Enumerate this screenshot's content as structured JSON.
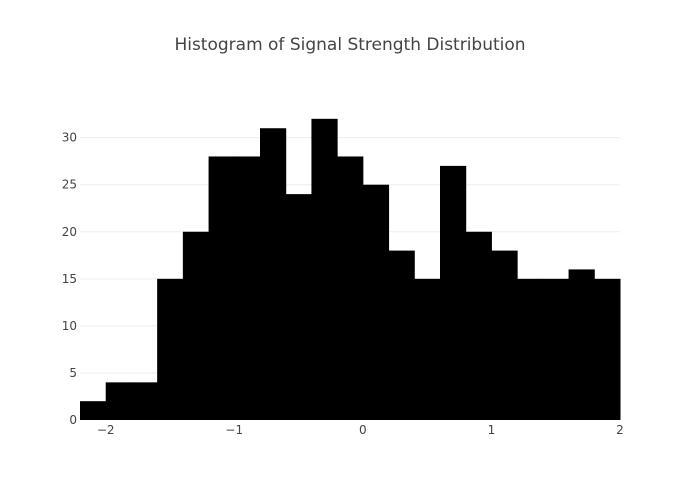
{
  "chart_data": {
    "type": "bar",
    "title": "Histogram of Signal Strength Distribution",
    "xlabel": "",
    "ylabel": "",
    "xlim": [
      -2.2,
      2.0
    ],
    "ylim": [
      0,
      34
    ],
    "grid": true,
    "bar_color": "#000000",
    "grid_color": "#eeeeee",
    "bin_edges": [
      -2.2,
      -2.0,
      -1.8,
      -1.6,
      -1.4,
      -1.2,
      -1.0,
      -0.8,
      -0.6,
      -0.4,
      -0.2,
      0.0,
      0.2,
      0.4,
      0.6,
      0.8,
      1.0,
      1.2,
      1.4,
      1.6,
      1.8,
      2.0
    ],
    "values": [
      2,
      4,
      4,
      15,
      20,
      28,
      28,
      31,
      24,
      32,
      28,
      25,
      18,
      15,
      27,
      20,
      18,
      15,
      15,
      16,
      15
    ],
    "x_ticks": [
      {
        "value": -2,
        "label": "−2"
      },
      {
        "value": -1,
        "label": "−1"
      },
      {
        "value": 0,
        "label": "0"
      },
      {
        "value": 1,
        "label": "1"
      },
      {
        "value": 2,
        "label": "2"
      }
    ],
    "y_ticks": [
      {
        "value": 0,
        "label": "0"
      },
      {
        "value": 5,
        "label": "5"
      },
      {
        "value": 10,
        "label": "10"
      },
      {
        "value": 15,
        "label": "15"
      },
      {
        "value": 20,
        "label": "20"
      },
      {
        "value": 25,
        "label": "25"
      },
      {
        "value": 30,
        "label": "30"
      }
    ]
  }
}
